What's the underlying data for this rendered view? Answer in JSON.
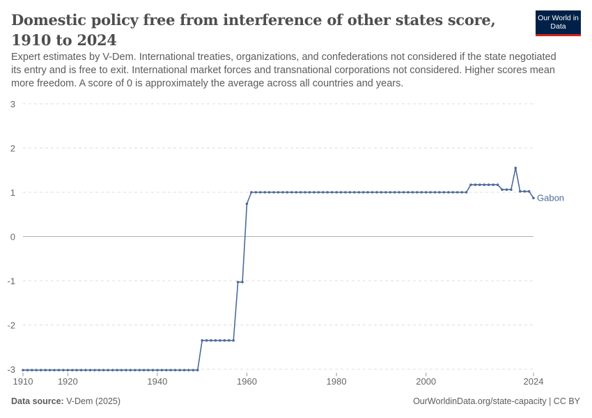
{
  "title": "Domestic policy free from interference of other states score, 1910 to 2024",
  "subtitle": "Expert estimates by V-Dem. International treaties, organizations, and confederations not considered if the state negotiated its entry and is free to exit. International market forces and transnational corporations not considered. Higher scores mean more freedom. A score of 0 is approximately the average across all countries and years.",
  "logo": "Our World in Data",
  "footer": {
    "source_label": "Data source:",
    "source": "V-Dem (2025)",
    "link": "OurWorldinData.org/state-capacity | CC BY"
  },
  "chart_data": {
    "type": "line",
    "xlim": [
      1910,
      2024
    ],
    "ylim": [
      -3,
      3
    ],
    "y_ticks": [
      "-3",
      "-2",
      "-1",
      "0",
      "1",
      "2",
      "3"
    ],
    "x_ticks": [
      "1910",
      "1920",
      "1940",
      "1960",
      "1980",
      "2000",
      "2024"
    ],
    "grid": true,
    "legend": "end-of-line label",
    "series": [
      {
        "name": "Gabon",
        "color": "#4c6a9c",
        "x": [
          1910,
          1911,
          1912,
          1913,
          1914,
          1915,
          1916,
          1917,
          1918,
          1919,
          1920,
          1921,
          1922,
          1923,
          1924,
          1925,
          1926,
          1927,
          1928,
          1929,
          1930,
          1931,
          1932,
          1933,
          1934,
          1935,
          1936,
          1937,
          1938,
          1939,
          1940,
          1941,
          1942,
          1943,
          1944,
          1945,
          1946,
          1947,
          1948,
          1949,
          1950,
          1951,
          1952,
          1953,
          1954,
          1955,
          1956,
          1957,
          1958,
          1959,
          1960,
          1961,
          1962,
          1963,
          1964,
          1965,
          1966,
          1967,
          1968,
          1969,
          1970,
          1971,
          1972,
          1973,
          1974,
          1975,
          1976,
          1977,
          1978,
          1979,
          1980,
          1981,
          1982,
          1983,
          1984,
          1985,
          1986,
          1987,
          1988,
          1989,
          1990,
          1991,
          1992,
          1993,
          1994,
          1995,
          1996,
          1997,
          1998,
          1999,
          2000,
          2001,
          2002,
          2003,
          2004,
          2005,
          2006,
          2007,
          2008,
          2009,
          2010,
          2011,
          2012,
          2013,
          2014,
          2015,
          2016,
          2017,
          2018,
          2019,
          2020,
          2021,
          2022,
          2023,
          2024
        ],
        "y": [
          -3.02,
          -3.02,
          -3.02,
          -3.02,
          -3.02,
          -3.02,
          -3.02,
          -3.02,
          -3.02,
          -3.02,
          -3.02,
          -3.02,
          -3.02,
          -3.02,
          -3.02,
          -3.02,
          -3.02,
          -3.02,
          -3.02,
          -3.02,
          -3.02,
          -3.02,
          -3.02,
          -3.02,
          -3.02,
          -3.02,
          -3.02,
          -3.02,
          -3.02,
          -3.02,
          -3.02,
          -3.02,
          -3.02,
          -3.02,
          -3.02,
          -3.02,
          -3.02,
          -3.02,
          -3.02,
          -3.02,
          -2.35,
          -2.35,
          -2.35,
          -2.35,
          -2.35,
          -2.35,
          -2.35,
          -2.35,
          -1.03,
          -1.03,
          0.74,
          1.0,
          1.0,
          1.0,
          1.0,
          1.0,
          1.0,
          1.0,
          1.0,
          1.0,
          1.0,
          1.0,
          1.0,
          1.0,
          1.0,
          1.0,
          1.0,
          1.0,
          1.0,
          1.0,
          1.0,
          1.0,
          1.0,
          1.0,
          1.0,
          1.0,
          1.0,
          1.0,
          1.0,
          1.0,
          1.0,
          1.0,
          1.0,
          1.0,
          1.0,
          1.0,
          1.0,
          1.0,
          1.0,
          1.0,
          1.0,
          1.0,
          1.0,
          1.0,
          1.0,
          1.0,
          1.0,
          1.0,
          1.0,
          1.0,
          1.17,
          1.17,
          1.17,
          1.17,
          1.17,
          1.17,
          1.17,
          1.06,
          1.06,
          1.06,
          1.55,
          1.02,
          1.02,
          1.02,
          0.87
        ]
      }
    ]
  }
}
